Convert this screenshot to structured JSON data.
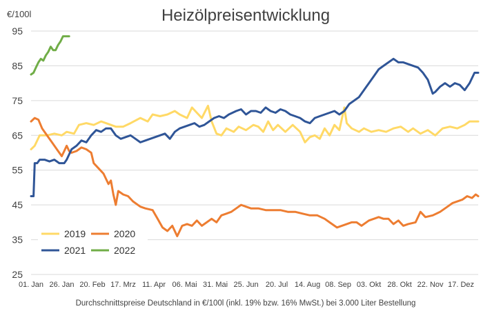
{
  "chart_data": {
    "type": "line",
    "title": "Heizölpreisentwicklung",
    "ylabel": "€/100l",
    "caption": "Durchschnittspreise Deutschland in €/100l (inkl. 19% bzw. 16%  MwSt.) bei 3.000 Liter Bestellung",
    "ylim": [
      25,
      95
    ],
    "yticks": [
      25,
      35,
      45,
      55,
      65,
      75,
      85,
      95
    ],
    "xlim_day": [
      1,
      365
    ],
    "grid": true,
    "legend_position": "bottom-left",
    "xticks": [
      {
        "label": "01. Jan",
        "day": 1
      },
      {
        "label": "26. Jan",
        "day": 26
      },
      {
        "label": "20. Feb",
        "day": 51
      },
      {
        "label": "17. Mrz",
        "day": 76
      },
      {
        "label": "11. Apr",
        "day": 101
      },
      {
        "label": "06. Mai",
        "day": 126
      },
      {
        "label": "31. Mai",
        "day": 151
      },
      {
        "label": "25. Jun",
        "day": 176
      },
      {
        "label": "20. Jul",
        "day": 201
      },
      {
        "label": "14. Aug",
        "day": 226
      },
      {
        "label": "08. Sep",
        "day": 251
      },
      {
        "label": "03. Okt",
        "day": 276
      },
      {
        "label": "28. Okt",
        "day": 301
      },
      {
        "label": "22. Nov",
        "day": 326
      },
      {
        "label": "17. Dez",
        "day": 351
      }
    ],
    "series": [
      {
        "name": "2019",
        "color": "#ffd966",
        "points": [
          [
            1,
            61
          ],
          [
            4,
            62
          ],
          [
            8,
            65
          ],
          [
            14,
            65
          ],
          [
            20,
            65.5
          ],
          [
            26,
            65
          ],
          [
            30,
            66
          ],
          [
            36,
            65.5
          ],
          [
            40,
            68
          ],
          [
            46,
            68.5
          ],
          [
            52,
            68
          ],
          [
            58,
            69
          ],
          [
            62,
            68.5
          ],
          [
            70,
            67.5
          ],
          [
            76,
            67.5
          ],
          [
            82,
            68.5
          ],
          [
            90,
            70
          ],
          [
            96,
            69
          ],
          [
            100,
            71
          ],
          [
            106,
            70.5
          ],
          [
            112,
            71
          ],
          [
            118,
            72
          ],
          [
            122,
            71
          ],
          [
            128,
            70
          ],
          [
            132,
            73
          ],
          [
            136,
            71.5
          ],
          [
            140,
            70
          ],
          [
            145,
            73.5
          ],
          [
            148,
            69
          ],
          [
            152,
            65.5
          ],
          [
            156,
            65
          ],
          [
            160,
            67
          ],
          [
            166,
            66
          ],
          [
            170,
            67.5
          ],
          [
            176,
            66.5
          ],
          [
            182,
            68
          ],
          [
            186,
            67.5
          ],
          [
            190,
            66
          ],
          [
            194,
            69
          ],
          [
            198,
            66.5
          ],
          [
            202,
            68
          ],
          [
            208,
            66
          ],
          [
            214,
            68
          ],
          [
            220,
            66
          ],
          [
            224,
            63
          ],
          [
            228,
            64.5
          ],
          [
            232,
            65
          ],
          [
            236,
            64
          ],
          [
            240,
            67
          ],
          [
            244,
            65
          ],
          [
            248,
            68
          ],
          [
            252,
            66.5
          ],
          [
            256,
            73
          ],
          [
            258,
            68.5
          ],
          [
            262,
            67
          ],
          [
            268,
            66
          ],
          [
            272,
            67
          ],
          [
            278,
            66
          ],
          [
            284,
            66.5
          ],
          [
            290,
            66
          ],
          [
            296,
            67
          ],
          [
            302,
            67.5
          ],
          [
            308,
            66
          ],
          [
            312,
            67
          ],
          [
            318,
            65.5
          ],
          [
            324,
            66.5
          ],
          [
            330,
            65
          ],
          [
            336,
            67
          ],
          [
            342,
            67.5
          ],
          [
            348,
            67
          ],
          [
            354,
            68
          ],
          [
            358,
            69
          ],
          [
            362,
            69
          ],
          [
            365,
            69
          ]
        ]
      },
      {
        "name": "2020",
        "color": "#ed7d31",
        "points": [
          [
            1,
            69
          ],
          [
            4,
            70
          ],
          [
            7,
            69.5
          ],
          [
            10,
            67
          ],
          [
            14,
            65
          ],
          [
            18,
            63
          ],
          [
            22,
            61
          ],
          [
            26,
            59
          ],
          [
            28,
            60.5
          ],
          [
            30,
            62
          ],
          [
            32,
            60.5
          ],
          [
            34,
            60
          ],
          [
            38,
            60.5
          ],
          [
            42,
            61.5
          ],
          [
            46,
            61
          ],
          [
            50,
            60
          ],
          [
            52,
            57
          ],
          [
            56,
            55.5
          ],
          [
            60,
            54
          ],
          [
            64,
            51
          ],
          [
            66,
            52
          ],
          [
            68,
            48
          ],
          [
            70,
            45
          ],
          [
            72,
            49
          ],
          [
            76,
            48
          ],
          [
            80,
            47.5
          ],
          [
            84,
            46
          ],
          [
            90,
            44.5
          ],
          [
            94,
            44
          ],
          [
            100,
            43.5
          ],
          [
            104,
            41
          ],
          [
            108,
            38.5
          ],
          [
            112,
            37.5
          ],
          [
            116,
            39
          ],
          [
            120,
            36
          ],
          [
            124,
            39
          ],
          [
            128,
            39.5
          ],
          [
            132,
            39
          ],
          [
            136,
            40.5
          ],
          [
            140,
            39
          ],
          [
            144,
            40
          ],
          [
            148,
            41
          ],
          [
            152,
            40
          ],
          [
            156,
            42
          ],
          [
            160,
            42.5
          ],
          [
            164,
            43
          ],
          [
            168,
            44
          ],
          [
            172,
            45
          ],
          [
            176,
            44.5
          ],
          [
            180,
            44
          ],
          [
            186,
            44
          ],
          [
            192,
            43.5
          ],
          [
            198,
            43.5
          ],
          [
            204,
            43.5
          ],
          [
            210,
            43
          ],
          [
            216,
            43
          ],
          [
            222,
            42.5
          ],
          [
            228,
            42
          ],
          [
            234,
            42
          ],
          [
            240,
            41
          ],
          [
            244,
            40
          ],
          [
            250,
            38.5
          ],
          [
            254,
            39
          ],
          [
            258,
            39.5
          ],
          [
            262,
            40
          ],
          [
            266,
            40
          ],
          [
            270,
            39
          ],
          [
            276,
            40.5
          ],
          [
            280,
            41
          ],
          [
            284,
            41.5
          ],
          [
            288,
            41
          ],
          [
            292,
            41
          ],
          [
            296,
            39.5
          ],
          [
            300,
            40.5
          ],
          [
            304,
            39
          ],
          [
            308,
            39.5
          ],
          [
            314,
            40
          ],
          [
            318,
            43
          ],
          [
            322,
            41.5
          ],
          [
            328,
            42
          ],
          [
            334,
            43
          ],
          [
            340,
            44.5
          ],
          [
            344,
            45.5
          ],
          [
            348,
            46
          ],
          [
            352,
            46.5
          ],
          [
            356,
            47.5
          ],
          [
            360,
            47
          ],
          [
            363,
            48
          ],
          [
            365,
            47.5
          ]
        ]
      },
      {
        "name": "2021",
        "color": "#2f5597",
        "points": [
          [
            1,
            47.5
          ],
          [
            3,
            47.5
          ],
          [
            4,
            57
          ],
          [
            6,
            57
          ],
          [
            8,
            58
          ],
          [
            12,
            58
          ],
          [
            16,
            57.5
          ],
          [
            20,
            58
          ],
          [
            24,
            57
          ],
          [
            28,
            57
          ],
          [
            30,
            58
          ],
          [
            34,
            61
          ],
          [
            38,
            62
          ],
          [
            42,
            63.5
          ],
          [
            46,
            63
          ],
          [
            50,
            65
          ],
          [
            54,
            66.5
          ],
          [
            58,
            66
          ],
          [
            62,
            67
          ],
          [
            66,
            67
          ],
          [
            70,
            65
          ],
          [
            74,
            64
          ],
          [
            78,
            64.5
          ],
          [
            82,
            65
          ],
          [
            86,
            64
          ],
          [
            90,
            63
          ],
          [
            94,
            63.5
          ],
          [
            98,
            64
          ],
          [
            102,
            64.5
          ],
          [
            106,
            65
          ],
          [
            110,
            65.5
          ],
          [
            114,
            64
          ],
          [
            118,
            66
          ],
          [
            122,
            67
          ],
          [
            126,
            67.5
          ],
          [
            130,
            68
          ],
          [
            134,
            68.5
          ],
          [
            138,
            67.5
          ],
          [
            142,
            68
          ],
          [
            146,
            69
          ],
          [
            150,
            70
          ],
          [
            154,
            70.5
          ],
          [
            158,
            70
          ],
          [
            162,
            71
          ],
          [
            168,
            72
          ],
          [
            172,
            72.5
          ],
          [
            176,
            71
          ],
          [
            180,
            72
          ],
          [
            184,
            72
          ],
          [
            188,
            71.5
          ],
          [
            192,
            73
          ],
          [
            196,
            72
          ],
          [
            200,
            71.5
          ],
          [
            204,
            72.5
          ],
          [
            208,
            72
          ],
          [
            212,
            71
          ],
          [
            216,
            70.5
          ],
          [
            220,
            70
          ],
          [
            224,
            69
          ],
          [
            228,
            68.5
          ],
          [
            232,
            70
          ],
          [
            236,
            70.5
          ],
          [
            240,
            71
          ],
          [
            244,
            71.5
          ],
          [
            248,
            72
          ],
          [
            252,
            71
          ],
          [
            256,
            72
          ],
          [
            260,
            74
          ],
          [
            264,
            75
          ],
          [
            268,
            76
          ],
          [
            272,
            78
          ],
          [
            276,
            80
          ],
          [
            280,
            82
          ],
          [
            284,
            84
          ],
          [
            288,
            85
          ],
          [
            292,
            86
          ],
          [
            296,
            87
          ],
          [
            300,
            86
          ],
          [
            304,
            86
          ],
          [
            308,
            85.5
          ],
          [
            312,
            85
          ],
          [
            316,
            84.5
          ],
          [
            320,
            83
          ],
          [
            324,
            81
          ],
          [
            326,
            79
          ],
          [
            328,
            77
          ],
          [
            330,
            77.5
          ],
          [
            334,
            79
          ],
          [
            338,
            80
          ],
          [
            342,
            79
          ],
          [
            346,
            80
          ],
          [
            350,
            79.5
          ],
          [
            354,
            78
          ],
          [
            358,
            80
          ],
          [
            362,
            83
          ],
          [
            365,
            83
          ]
        ]
      },
      {
        "name": "2022",
        "color": "#70ad47",
        "points": [
          [
            1,
            82.5
          ],
          [
            3,
            83
          ],
          [
            5,
            84.5
          ],
          [
            7,
            86
          ],
          [
            9,
            87
          ],
          [
            11,
            86.5
          ],
          [
            13,
            88
          ],
          [
            15,
            89
          ],
          [
            17,
            90.5
          ],
          [
            19,
            89.5
          ],
          [
            21,
            89.5
          ],
          [
            23,
            91
          ],
          [
            25,
            92
          ],
          [
            27,
            93.5
          ],
          [
            30,
            93.5
          ],
          [
            32,
            93.5
          ]
        ]
      }
    ]
  }
}
